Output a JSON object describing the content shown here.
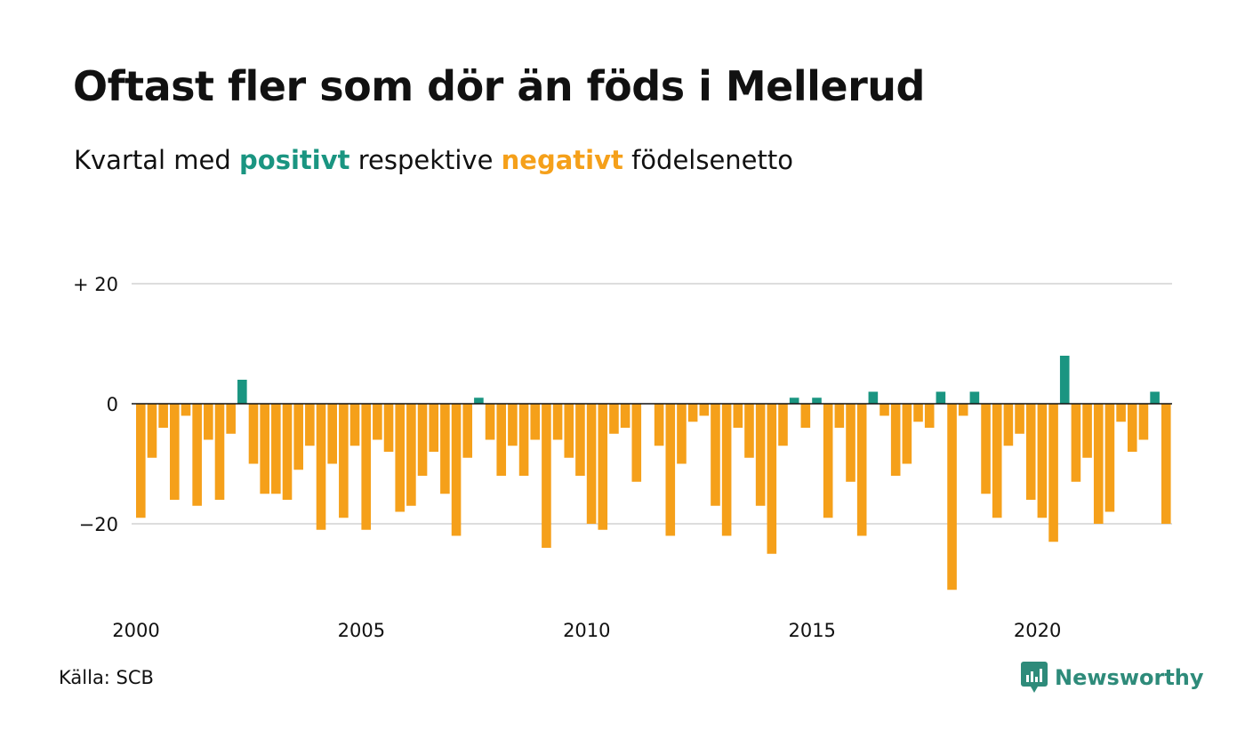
{
  "title": "Oftast fler som dör än föds i Mellerud",
  "subtitle": {
    "prefix": "Kvartal med",
    "positive_word": "positivt",
    "middle": "respektive",
    "negative_word": "negativt",
    "suffix": "födelsenetto"
  },
  "source": "Källa: SCB",
  "brand": "Newsworthy",
  "colors": {
    "positive": "#1a9581",
    "negative": "#f5a01a",
    "grid": "#dddddd",
    "zero": "#111111"
  },
  "chart_data": {
    "type": "bar",
    "x_label": "",
    "y_label": "",
    "ylim": [
      -31,
      20
    ],
    "y_ticks": [
      {
        "value": 20,
        "label": "+ 20"
      },
      {
        "value": 0,
        "label": "0"
      },
      {
        "value": -20,
        "label": "−20"
      }
    ],
    "x_ticks": [
      "2000",
      "2005",
      "2010",
      "2015",
      "2020"
    ],
    "grid": true,
    "first_quarter": "2000 Q1",
    "values": [
      -19,
      -9,
      -4,
      -16,
      -2,
      -17,
      -6,
      -16,
      -5,
      4,
      -10,
      -15,
      -15,
      -16,
      -11,
      -7,
      -21,
      -10,
      -19,
      -7,
      -21,
      -6,
      -8,
      -18,
      -17,
      -12,
      -8,
      -15,
      -22,
      -9,
      1,
      -6,
      -12,
      -7,
      -12,
      -6,
      -24,
      -6,
      -9,
      -12,
      -20,
      -21,
      -5,
      -4,
      -13,
      0,
      -7,
      -22,
      -10,
      -3,
      -2,
      -17,
      -22,
      -4,
      -9,
      -17,
      -25,
      -7,
      1,
      -4,
      1,
      -19,
      -4,
      -13,
      -22,
      2,
      -2,
      -12,
      -10,
      -3,
      -4,
      2,
      -31,
      -2,
      2,
      -15,
      -19,
      -7,
      -5,
      -16,
      -19,
      -23,
      8,
      -13,
      -9,
      -20,
      -18,
      -3,
      -8,
      -6,
      2,
      -20
    ]
  }
}
